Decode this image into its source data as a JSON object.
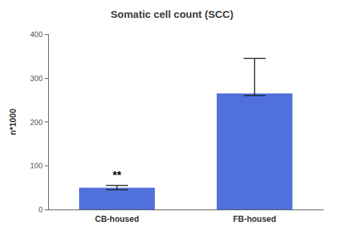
{
  "chart_data": {
    "type": "bar",
    "title": "Somatic cell count (SCC)",
    "ylabel": "n*1000",
    "categories": [
      "CB-housed",
      "FB-housed"
    ],
    "values": [
      50,
      265
    ],
    "errors_upper": [
      5,
      80
    ],
    "errors_lower": [
      5,
      5
    ],
    "annotations": [
      {
        "text": "**",
        "category": "CB-housed"
      }
    ],
    "ylim": [
      0,
      400
    ],
    "yticks": [
      0,
      100,
      200,
      300,
      400
    ],
    "grid": false
  }
}
